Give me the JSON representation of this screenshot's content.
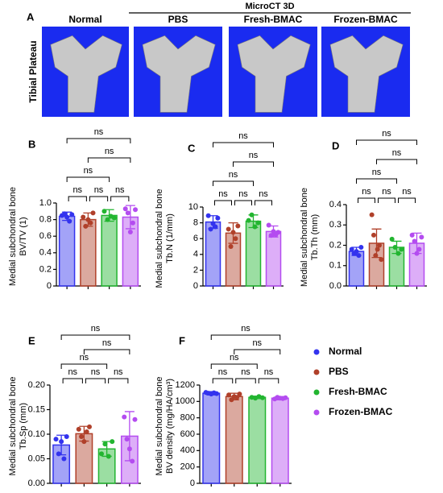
{
  "panel_a": {
    "label": "A",
    "header": "MicroCT 3D",
    "row_label": "Tibial Plateau",
    "columns": [
      "Normal",
      "PBS",
      "Fresh-BMAC",
      "Frozen-BMAC"
    ]
  },
  "legend": [
    {
      "name": "Normal",
      "color": "#3333ee"
    },
    {
      "name": "PBS",
      "color": "#b0402a"
    },
    {
      "name": "Fresh-BMAC",
      "color": "#22b530"
    },
    {
      "name": "Frozen-BMAC",
      "color": "#b44cf0"
    }
  ],
  "chart_data": [
    {
      "type": "bar",
      "label": "B",
      "ylabel": [
        "Medial subchondral bone",
        "BV/TV (1)"
      ],
      "ylim": [
        0,
        1.0
      ],
      "yticks": [
        0,
        0.2,
        0.4,
        0.6,
        0.8,
        {
          "value": 1.0,
          "label": "1.0"
        }
      ],
      "values": [
        0.84,
        0.8,
        0.85,
        0.83
      ],
      "errors": [
        0.05,
        0.08,
        0.07,
        0.14
      ],
      "points": [
        [
          0.85,
          0.87,
          0.83,
          0.78,
          0.86
        ],
        [
          0.83,
          0.72,
          0.8,
          0.76,
          0.88
        ],
        [
          0.9,
          0.8,
          0.84,
          0.82
        ],
        [
          0.93,
          0.88,
          0.65,
          0.76,
          0.92
        ]
      ],
      "comparisons": [
        {
          "pair": [
            0,
            1
          ],
          "label": "ns"
        },
        {
          "pair": [
            1,
            2
          ],
          "label": "ns"
        },
        {
          "pair": [
            2,
            3
          ],
          "label": "ns"
        },
        {
          "pair": [
            0,
            2
          ],
          "label": "ns"
        },
        {
          "pair": [
            1,
            3
          ],
          "label": "ns"
        },
        {
          "pair": [
            0,
            3
          ],
          "label": "ns"
        }
      ]
    },
    {
      "type": "bar",
      "label": "C",
      "ylabel": [
        "Medial subchondral bone",
        "Tb.N (1/mm)"
      ],
      "ylim": [
        0,
        10
      ],
      "yticks": [
        0,
        2,
        4,
        6,
        8,
        10
      ],
      "values": [
        8.1,
        6.7,
        8.2,
        6.9
      ],
      "errors": [
        0.8,
        1.3,
        0.8,
        0.7
      ],
      "points": [
        [
          8.9,
          7.2,
          7.9,
          7.5,
          8.6
        ],
        [
          7.2,
          5.0,
          6.8,
          6.0,
          7.6
        ],
        [
          8.3,
          9.0,
          7.5,
          8.0
        ],
        [
          7.7,
          6.4,
          6.9,
          6.5,
          6.8
        ]
      ],
      "comparisons": [
        {
          "pair": [
            0,
            1
          ],
          "label": "ns"
        },
        {
          "pair": [
            1,
            2
          ],
          "label": "ns"
        },
        {
          "pair": [
            2,
            3
          ],
          "label": "ns"
        },
        {
          "pair": [
            0,
            2
          ],
          "label": "ns"
        },
        {
          "pair": [
            1,
            3
          ],
          "label": "ns"
        },
        {
          "pair": [
            0,
            3
          ],
          "label": "ns"
        }
      ]
    },
    {
      "type": "bar",
      "label": "D",
      "ylabel": [
        "Medial subchondral bone",
        "Tb.Th (mm)"
      ],
      "ylim": [
        0,
        0.4
      ],
      "yticks": [
        {
          "value": 0,
          "label": "0.0"
        },
        0.1,
        0.2,
        0.3,
        0.4
      ],
      "values": [
        0.17,
        0.21,
        0.19,
        0.21
      ],
      "errors": [
        0.02,
        0.07,
        0.03,
        0.05
      ],
      "points": [
        [
          0.18,
          0.16,
          0.17,
          0.15,
          0.19
        ],
        [
          0.35,
          0.25,
          0.15,
          0.18,
          0.2,
          0.13
        ],
        [
          0.23,
          0.19,
          0.16,
          0.18
        ],
        [
          0.25,
          0.22,
          0.16,
          0.18,
          0.24
        ]
      ],
      "comparisons": [
        {
          "pair": [
            0,
            1
          ],
          "label": "ns"
        },
        {
          "pair": [
            1,
            2
          ],
          "label": "ns"
        },
        {
          "pair": [
            2,
            3
          ],
          "label": "ns"
        },
        {
          "pair": [
            0,
            2
          ],
          "label": "ns"
        },
        {
          "pair": [
            1,
            3
          ],
          "label": "ns"
        },
        {
          "pair": [
            0,
            3
          ],
          "label": "ns"
        }
      ]
    },
    {
      "type": "bar",
      "label": "E",
      "ylabel": [
        "Medial subchondral bone",
        "Tb.Sp (mm)"
      ],
      "ylim": [
        0,
        0.2
      ],
      "yticks": [
        {
          "value": 0,
          "label": "0.00"
        },
        {
          "value": 0.05,
          "label": "0.05"
        },
        {
          "value": 0.1,
          "label": "0.10"
        },
        {
          "value": 0.15,
          "label": "0.15"
        },
        {
          "value": 0.2,
          "label": "0.20"
        }
      ],
      "values": [
        0.078,
        0.101,
        0.07,
        0.096
      ],
      "errors": [
        0.02,
        0.015,
        0.015,
        0.05
      ],
      "points": [
        [
          0.09,
          0.06,
          0.085,
          0.05,
          0.095
        ],
        [
          0.11,
          0.095,
          0.085,
          0.105,
          0.115
        ],
        [
          0.06,
          0.08,
          0.055,
          0.085
        ],
        [
          0.135,
          0.09,
          0.07,
          0.045,
          0.13
        ]
      ],
      "comparisons": [
        {
          "pair": [
            0,
            1
          ],
          "label": "ns"
        },
        {
          "pair": [
            1,
            2
          ],
          "label": "ns"
        },
        {
          "pair": [
            2,
            3
          ],
          "label": "ns"
        },
        {
          "pair": [
            0,
            2
          ],
          "label": "ns"
        },
        {
          "pair": [
            1,
            3
          ],
          "label": "ns"
        },
        {
          "pair": [
            0,
            3
          ],
          "label": "ns"
        }
      ]
    },
    {
      "type": "bar",
      "label": "F",
      "ylabel": [
        "Medial subchondral bone",
        "BV density (mg/HA/cm³)"
      ],
      "ylim": [
        0,
        1200
      ],
      "yticks": [
        0,
        200,
        400,
        600,
        800,
        1000,
        1200
      ],
      "values": [
        1100,
        1060,
        1050,
        1040
      ],
      "errors": [
        20,
        40,
        15,
        20
      ],
      "points": [
        [
          1110,
          1100,
          1090,
          1105,
          1095
        ],
        [
          1080,
          1020,
          1060,
          1050,
          1090
        ],
        [
          1050,
          1040,
          1060,
          1045
        ],
        [
          1030,
          1050,
          1040,
          1035,
          1045
        ]
      ],
      "comparisons": [
        {
          "pair": [
            0,
            1
          ],
          "label": "ns"
        },
        {
          "pair": [
            1,
            2
          ],
          "label": "ns"
        },
        {
          "pair": [
            2,
            3
          ],
          "label": "ns"
        },
        {
          "pair": [
            0,
            2
          ],
          "label": "ns"
        },
        {
          "pair": [
            1,
            3
          ],
          "label": "ns"
        },
        {
          "pair": [
            0,
            3
          ],
          "label": "ns"
        }
      ]
    }
  ]
}
